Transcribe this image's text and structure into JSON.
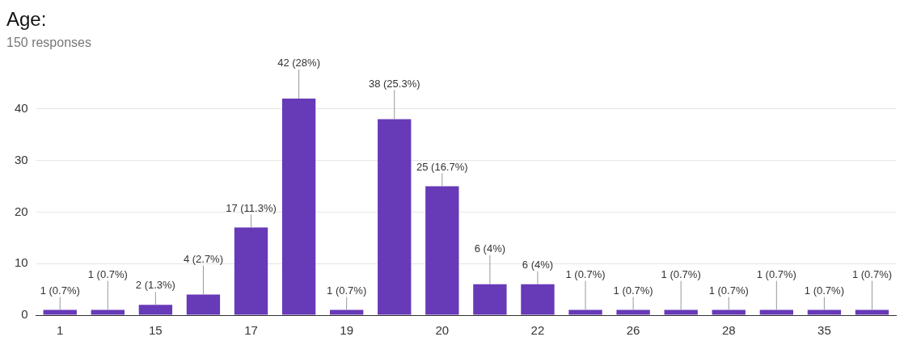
{
  "chart_data": {
    "type": "bar",
    "title": "Age:",
    "subtitle": "150 responses",
    "categories": [
      "1",
      null,
      "15",
      null,
      "17",
      null,
      "19",
      null,
      "20",
      null,
      "22",
      null,
      "26",
      null,
      "28",
      null,
      "35",
      null
    ],
    "values": [
      1,
      1,
      2,
      4,
      17,
      42,
      1,
      38,
      25,
      6,
      6,
      1,
      1,
      1,
      1,
      1,
      1,
      1
    ],
    "value_labels": [
      "1 (0.7%)",
      "1 (0.7%)",
      "2 (1.3%)",
      "4 (2.7%)",
      "17 (11.3%)",
      "42 (28%)",
      "1 (0.7%)",
      "38 (25.3%)",
      "25 (16.7%)",
      "6 (4%)",
      "6 (4%)",
      "1 (0.7%)",
      "1 (0.7%)",
      "1 (0.7%)",
      "1 (0.7%)",
      "1 (0.7%)",
      "1 (0.7%)",
      "1 (0.7%)"
    ],
    "color": "#673ab7",
    "ylim": [
      0,
      42
    ],
    "yticks": [
      0,
      10,
      20,
      30,
      40
    ],
    "grid": "y",
    "legend": false
  }
}
